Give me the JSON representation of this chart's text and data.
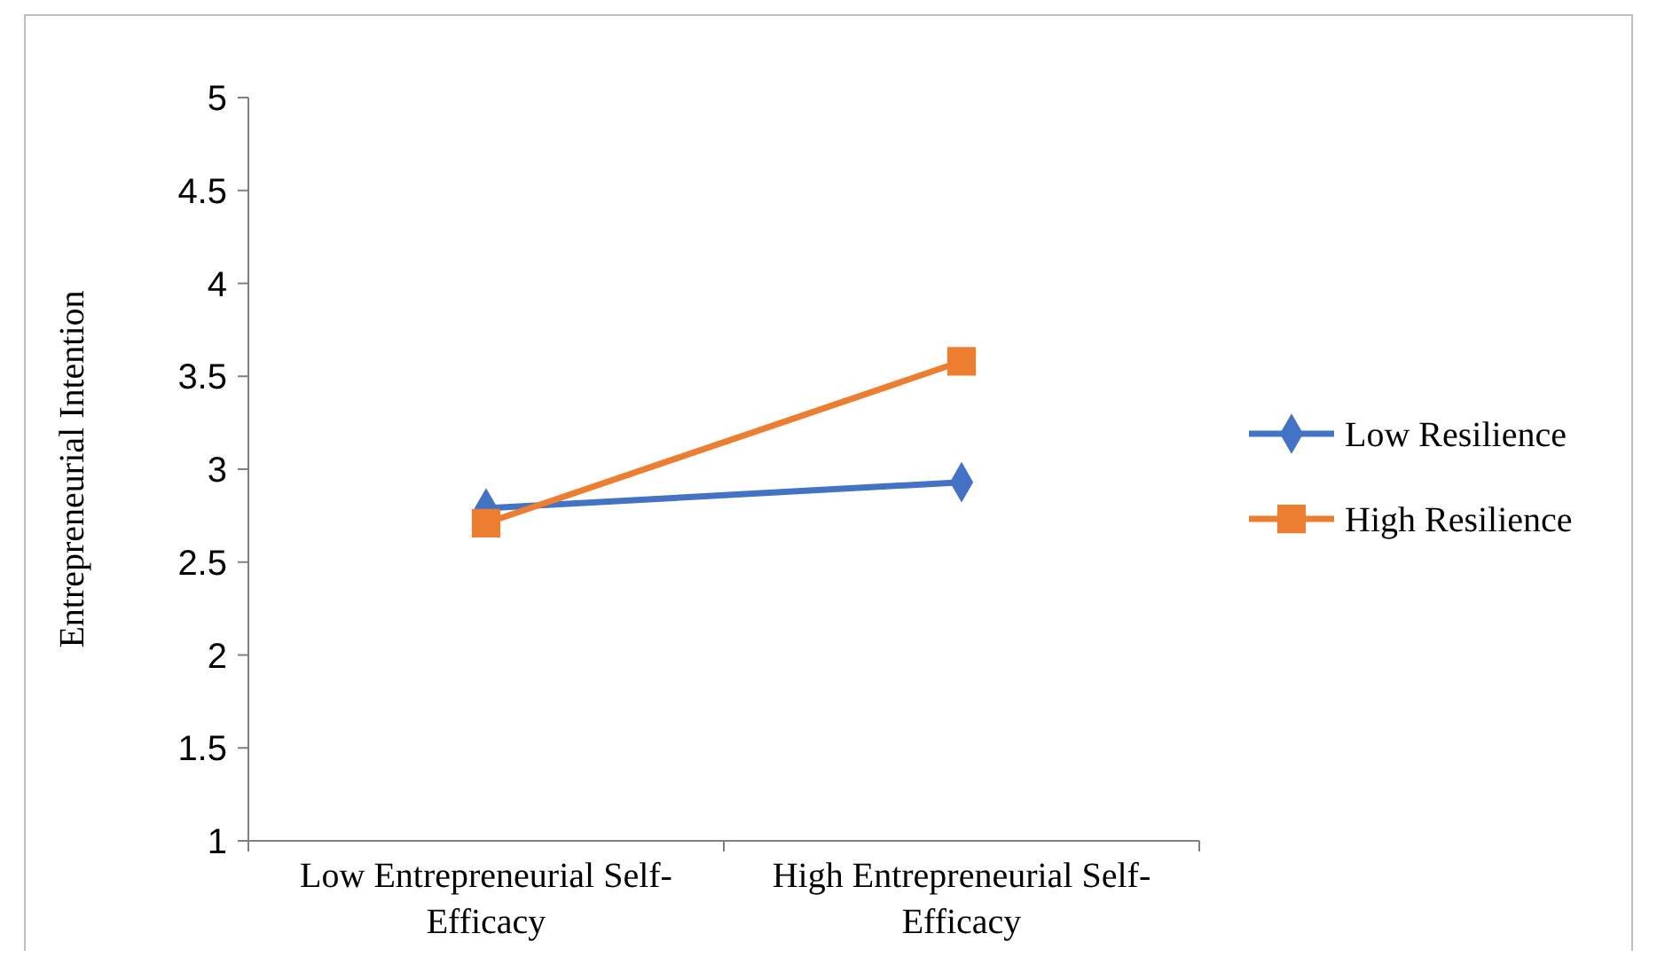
{
  "chart_data": {
    "type": "line",
    "ylabel": "Entrepreneurial Intention",
    "categories": [
      "Low Entrepreneurial Self-Efficacy",
      "High Entrepreneurial Self-Efficacy"
    ],
    "series": [
      {
        "name": "Low Resilience",
        "color": "#4472c4",
        "values": [
          2.79,
          2.93
        ],
        "marker": "diamond"
      },
      {
        "name": "High Resilience",
        "color": "#ed7d31",
        "values": [
          2.71,
          3.58
        ],
        "marker": "square"
      }
    ],
    "ylim": [
      1,
      5
    ],
    "yticks": [
      1,
      1.5,
      2,
      2.5,
      3,
      3.5,
      4,
      4.5,
      5
    ],
    "grid": false,
    "legend": "right"
  }
}
